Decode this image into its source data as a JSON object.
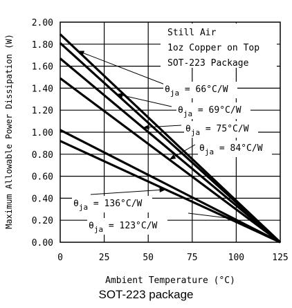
{
  "caption": "SOT-223 package",
  "chart_data": {
    "type": "line",
    "xlabel": "Ambient Temperature (°C)",
    "ylabel": "Maximum Allowable Power Dissipation (W)",
    "xlim": [
      0,
      125
    ],
    "ylim": [
      0,
      2
    ],
    "xticks": [
      "0",
      "25",
      "50",
      "75",
      "100",
      "125"
    ],
    "yticks": [
      "0.00",
      "0.20",
      "0.40",
      "0.60",
      "0.80",
      "1.00",
      "1.20",
      "1.40",
      "1.60",
      "1.80",
      "2.00"
    ],
    "grid": true,
    "annotations": [
      "Still Air",
      "1oz Copper on Top",
      "SOT-223 Package"
    ],
    "series": [
      {
        "name": "θja = 66°C/W",
        "label_main": "θ",
        "label_sub": "ja",
        "label_rest": " = 66°C/W",
        "x": [
          0,
          125
        ],
        "y": [
          1.89,
          0
        ]
      },
      {
        "name": "θja = 69°C/W",
        "label_main": "θ",
        "label_sub": "ja",
        "label_rest": " = 69°C/W",
        "x": [
          0,
          125
        ],
        "y": [
          1.81,
          0
        ]
      },
      {
        "name": "θja = 75°C/W",
        "label_main": "θ",
        "label_sub": "ja",
        "label_rest": " = 75°C/W",
        "x": [
          0,
          125
        ],
        "y": [
          1.67,
          0
        ]
      },
      {
        "name": "θja = 84°C/W",
        "label_main": "θ",
        "label_sub": "ja",
        "label_rest": " = 84°C/W",
        "x": [
          0,
          125
        ],
        "y": [
          1.49,
          0
        ]
      },
      {
        "name": "θja = 123°C/W",
        "label_main": "θ",
        "label_sub": "ja",
        "label_rest": " = 123°C/W",
        "x": [
          0,
          125
        ],
        "y": [
          1.02,
          0
        ]
      },
      {
        "name": "θja = 136°C/W",
        "label_main": "θ",
        "label_sub": "ja",
        "label_rest": " = 136°C/W",
        "x": [
          0,
          125
        ],
        "y": [
          0.92,
          0
        ]
      }
    ]
  }
}
